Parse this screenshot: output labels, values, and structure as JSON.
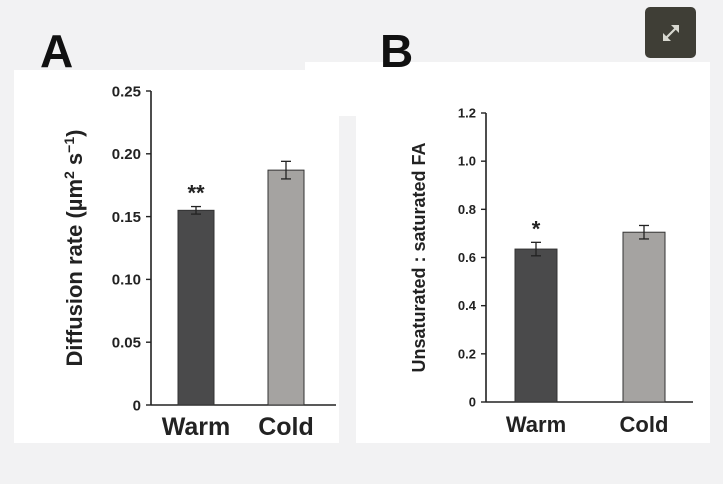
{
  "figure": {
    "panel_a_letter": "A",
    "panel_b_letter": "B",
    "expand_icon": "expand-arrows-icon"
  },
  "colors": {
    "warm": "#4a4a4b",
    "cold": "#a5a3a1",
    "bar_stroke": "#333333",
    "axis": "#222222",
    "panel_bg": "#ffffff",
    "page_bg": "#f2f2f3",
    "expand_bg": "#3f3e36"
  },
  "chart_data": [
    {
      "id": "A",
      "type": "bar",
      "categories": [
        "Warm",
        "Cold"
      ],
      "values": [
        0.155,
        0.187
      ],
      "errors": [
        0.003,
        0.007
      ],
      "significance": [
        "**",
        ""
      ],
      "ylabel_main": "Diffusion rate (µm",
      "ylabel_sup1": "2",
      "ylabel_mid": " s",
      "ylabel_sup2": "−1",
      "ylabel_end": ")",
      "ylim": [
        0,
        0.25
      ],
      "yticks": [
        "0",
        "0.05",
        "0.10",
        "0.15",
        "0.20",
        "0.25"
      ],
      "ytick_values": [
        0,
        0.05,
        0.1,
        0.15,
        0.2,
        0.25
      ]
    },
    {
      "id": "B",
      "type": "bar",
      "categories": [
        "Warm",
        "Cold"
      ],
      "values": [
        0.635,
        0.705
      ],
      "errors": [
        0.028,
        0.028
      ],
      "significance": [
        "*",
        ""
      ],
      "ylabel": "Unsaturated : saturated FA",
      "ylim": [
        0,
        1.2
      ],
      "yticks": [
        "0",
        "0.2",
        "0.4",
        "0.6",
        "0.8",
        "1.0",
        "1.2"
      ],
      "ytick_values": [
        0,
        0.2,
        0.4,
        0.6,
        0.8,
        1.0,
        1.2
      ]
    }
  ]
}
